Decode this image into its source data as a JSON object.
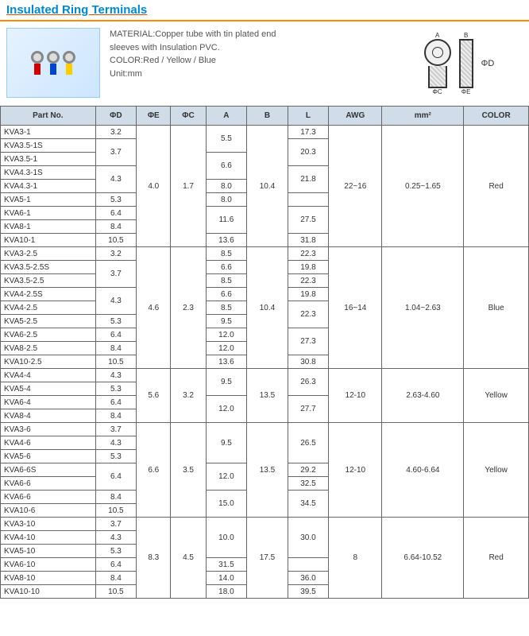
{
  "title": "Insulated Ring Terminals",
  "material_lines": [
    "MATERIAL:Copper tube with tin plated end",
    "sleeves with Insulation PVC.",
    "COLOR:Red / Yellow / Blue",
    "Unit:mm"
  ],
  "diagram_labels": {
    "a": "A",
    "b": "B",
    "l": "L",
    "oc": "ΦC",
    "oe": "ΦE",
    "od": "ΦD"
  },
  "columns": [
    "Part No.",
    "ΦD",
    "ΦE",
    "ΦC",
    "A",
    "B",
    "L",
    "AWG",
    "mm²",
    "COLOR"
  ],
  "groups": [
    {
      "oe": "4.0",
      "oc": "1.7",
      "b": "10.4",
      "awg": "22~16",
      "mm2": "0.25~1.65",
      "color": "Red",
      "rows": [
        {
          "part": "KVA3-1",
          "od": "3.2",
          "a": "5.5",
          "as": 2,
          "l": "17.3",
          "ls": 1,
          "ods": 1
        },
        {
          "part": "KVA3.5-1S",
          "od": "3.7",
          "ods": 2,
          "l": "20.3",
          "ls": 2
        },
        {
          "part": "KVA3.5-1",
          "a": "6.6",
          "as": 2
        },
        {
          "part": "KVA4.3-1S",
          "od": "4.3",
          "ods": 2,
          "l": "21.8",
          "ls": 2
        },
        {
          "part": "KVA4.3-1",
          "a": "8.0",
          "as": 1
        },
        {
          "part": "KVA5-1",
          "od": "5.3",
          "ods": 1,
          "a": "8.0",
          "as": 1,
          "l": "",
          "ls": 0
        },
        {
          "part": "KVA6-1",
          "od": "6.4",
          "ods": 1,
          "a": "11.6",
          "as": 2,
          "l": "27.5",
          "ls": 2
        },
        {
          "part": "KVA8-1",
          "od": "8.4",
          "ods": 1
        },
        {
          "part": "KVA10-1",
          "od": "10.5",
          "ods": 1,
          "a": "13.6",
          "as": 1,
          "l": "31.8",
          "ls": 1
        }
      ]
    },
    {
      "oe": "4.6",
      "oc": "2.3",
      "b": "10.4",
      "awg": "16~14",
      "mm2": "1.04~2.63",
      "color": "Blue",
      "rows": [
        {
          "part": "KVA3-2.5",
          "od": "3.2",
          "ods": 1,
          "a": "8.5",
          "as": 1,
          "l": "22.3",
          "ls": 1
        },
        {
          "part": "KVA3.5-2.5S",
          "od": "3.7",
          "ods": 2,
          "a": "6.6",
          "as": 1,
          "l": "19.8",
          "ls": 1
        },
        {
          "part": "KVA3.5-2.5",
          "a": "8.5",
          "as": 1,
          "l": "22.3",
          "ls": 1
        },
        {
          "part": "KVA4-2.5S",
          "od": "4.3",
          "ods": 2,
          "a": "6.6",
          "as": 1,
          "l": "19.8",
          "ls": 1
        },
        {
          "part": "KVA4-2.5",
          "a": "8.5",
          "as": 1,
          "l": "22.3",
          "ls": 2
        },
        {
          "part": "KVA5-2.5",
          "od": "5.3",
          "ods": 1,
          "a": "9.5",
          "as": 1
        },
        {
          "part": "KVA6-2.5",
          "od": "6.4",
          "ods": 1,
          "a": "12.0",
          "as": 1,
          "l": "27.3",
          "ls": 2
        },
        {
          "part": "KVA8-2.5",
          "od": "8.4",
          "ods": 1,
          "a": "12.0",
          "as": 1
        },
        {
          "part": "KVA10-2.5",
          "od": "10.5",
          "ods": 1,
          "a": "13.6",
          "as": 1,
          "l": "30.8",
          "ls": 1
        }
      ]
    },
    {
      "oe": "5.6",
      "oc": "3.2",
      "b": "13.5",
      "awg": "12-10",
      "mm2": "2.63-4.60",
      "color": "Yellow",
      "rows": [
        {
          "part": "KVA4-4",
          "od": "4.3",
          "ods": 1,
          "a": "9.5",
          "as": 2,
          "l": "26.3",
          "ls": 2
        },
        {
          "part": "KVA5-4",
          "od": "5.3",
          "ods": 1
        },
        {
          "part": "KVA6-4",
          "od": "6.4",
          "ods": 1,
          "a": "12.0",
          "as": 2,
          "l": "27.7",
          "ls": 2
        },
        {
          "part": "KVA8-4",
          "od": "8.4",
          "ods": 1
        }
      ]
    },
    {
      "oe": "6.6",
      "oc": "3.5",
      "b": "13.5",
      "awg": "12-10",
      "mm2": "4.60-6.64",
      "color": "Yellow",
      "rows": [
        {
          "part": "KVA3-6",
          "od": "3.7",
          "ods": 1,
          "a": "9.5",
          "as": 3,
          "l": "26.5",
          "ls": 3
        },
        {
          "part": "KVA4-6",
          "od": "4.3",
          "ods": 1
        },
        {
          "part": "KVA5-6",
          "od": "5.3",
          "ods": 1
        },
        {
          "part": "KVA6-6S",
          "od": "6.4",
          "ods": 2,
          "a": "12.0",
          "as": 2,
          "l": "29.2",
          "ls": 1
        },
        {
          "part": "KVA6-6",
          "l": "32.5",
          "ls": 1
        },
        {
          "part": "KVA6-6",
          "od": "8.4",
          "ods": 1,
          "a": "15.0",
          "as": 2,
          "l": "34.5",
          "ls": 2
        },
        {
          "part": "KVA10-6",
          "od": "10.5",
          "ods": 1
        }
      ]
    },
    {
      "oe": "8.3",
      "oc": "4.5",
      "b": "17.5",
      "awg": "8",
      "mm2": "6.64-10.52",
      "color": "Red",
      "rows": [
        {
          "part": "KVA3-10",
          "od": "3.7",
          "ods": 1,
          "a": "10.0",
          "as": 3,
          "l": "30.0",
          "ls": 3
        },
        {
          "part": "KVA4-10",
          "od": "4.3",
          "ods": 1
        },
        {
          "part": "KVA5-10",
          "od": "5.3",
          "ods": 1
        },
        {
          "part": "KVA6-10",
          "od": "6.4",
          "ods": 1,
          "a": "",
          "as": 0,
          "l": "31.5",
          "ls": 1
        },
        {
          "part": "KVA8-10",
          "od": "8.4",
          "ods": 1,
          "a": "14.0",
          "as": 1,
          "l": "36.0",
          "ls": 1
        },
        {
          "part": "KVA10-10",
          "od": "10.5",
          "ods": 1,
          "a": "18.0",
          "as": 1,
          "l": "39.5",
          "ls": 1
        }
      ]
    }
  ]
}
